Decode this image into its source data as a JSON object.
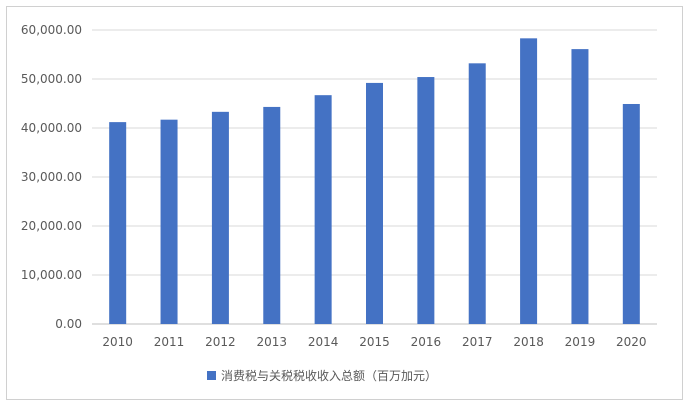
{
  "chart_data": {
    "type": "bar",
    "categories": [
      "2010",
      "2011",
      "2012",
      "2013",
      "2014",
      "2015",
      "2016",
      "2017",
      "2018",
      "2019",
      "2020"
    ],
    "series": [
      {
        "name": "消费税与关税税收收入总额（百万加元）",
        "values": [
          41200,
          41700,
          43300,
          44300,
          46700,
          49200,
          50400,
          53200,
          58300,
          56100,
          44900
        ],
        "color": "#4472c4"
      }
    ],
    "yticks": [
      "0.00",
      "10,000.00",
      "20,000.00",
      "30,000.00",
      "40,000.00",
      "50,000.00",
      "60,000.00"
    ],
    "ylim": [
      0,
      60000
    ],
    "grid": true,
    "legend_position": "bottom"
  }
}
